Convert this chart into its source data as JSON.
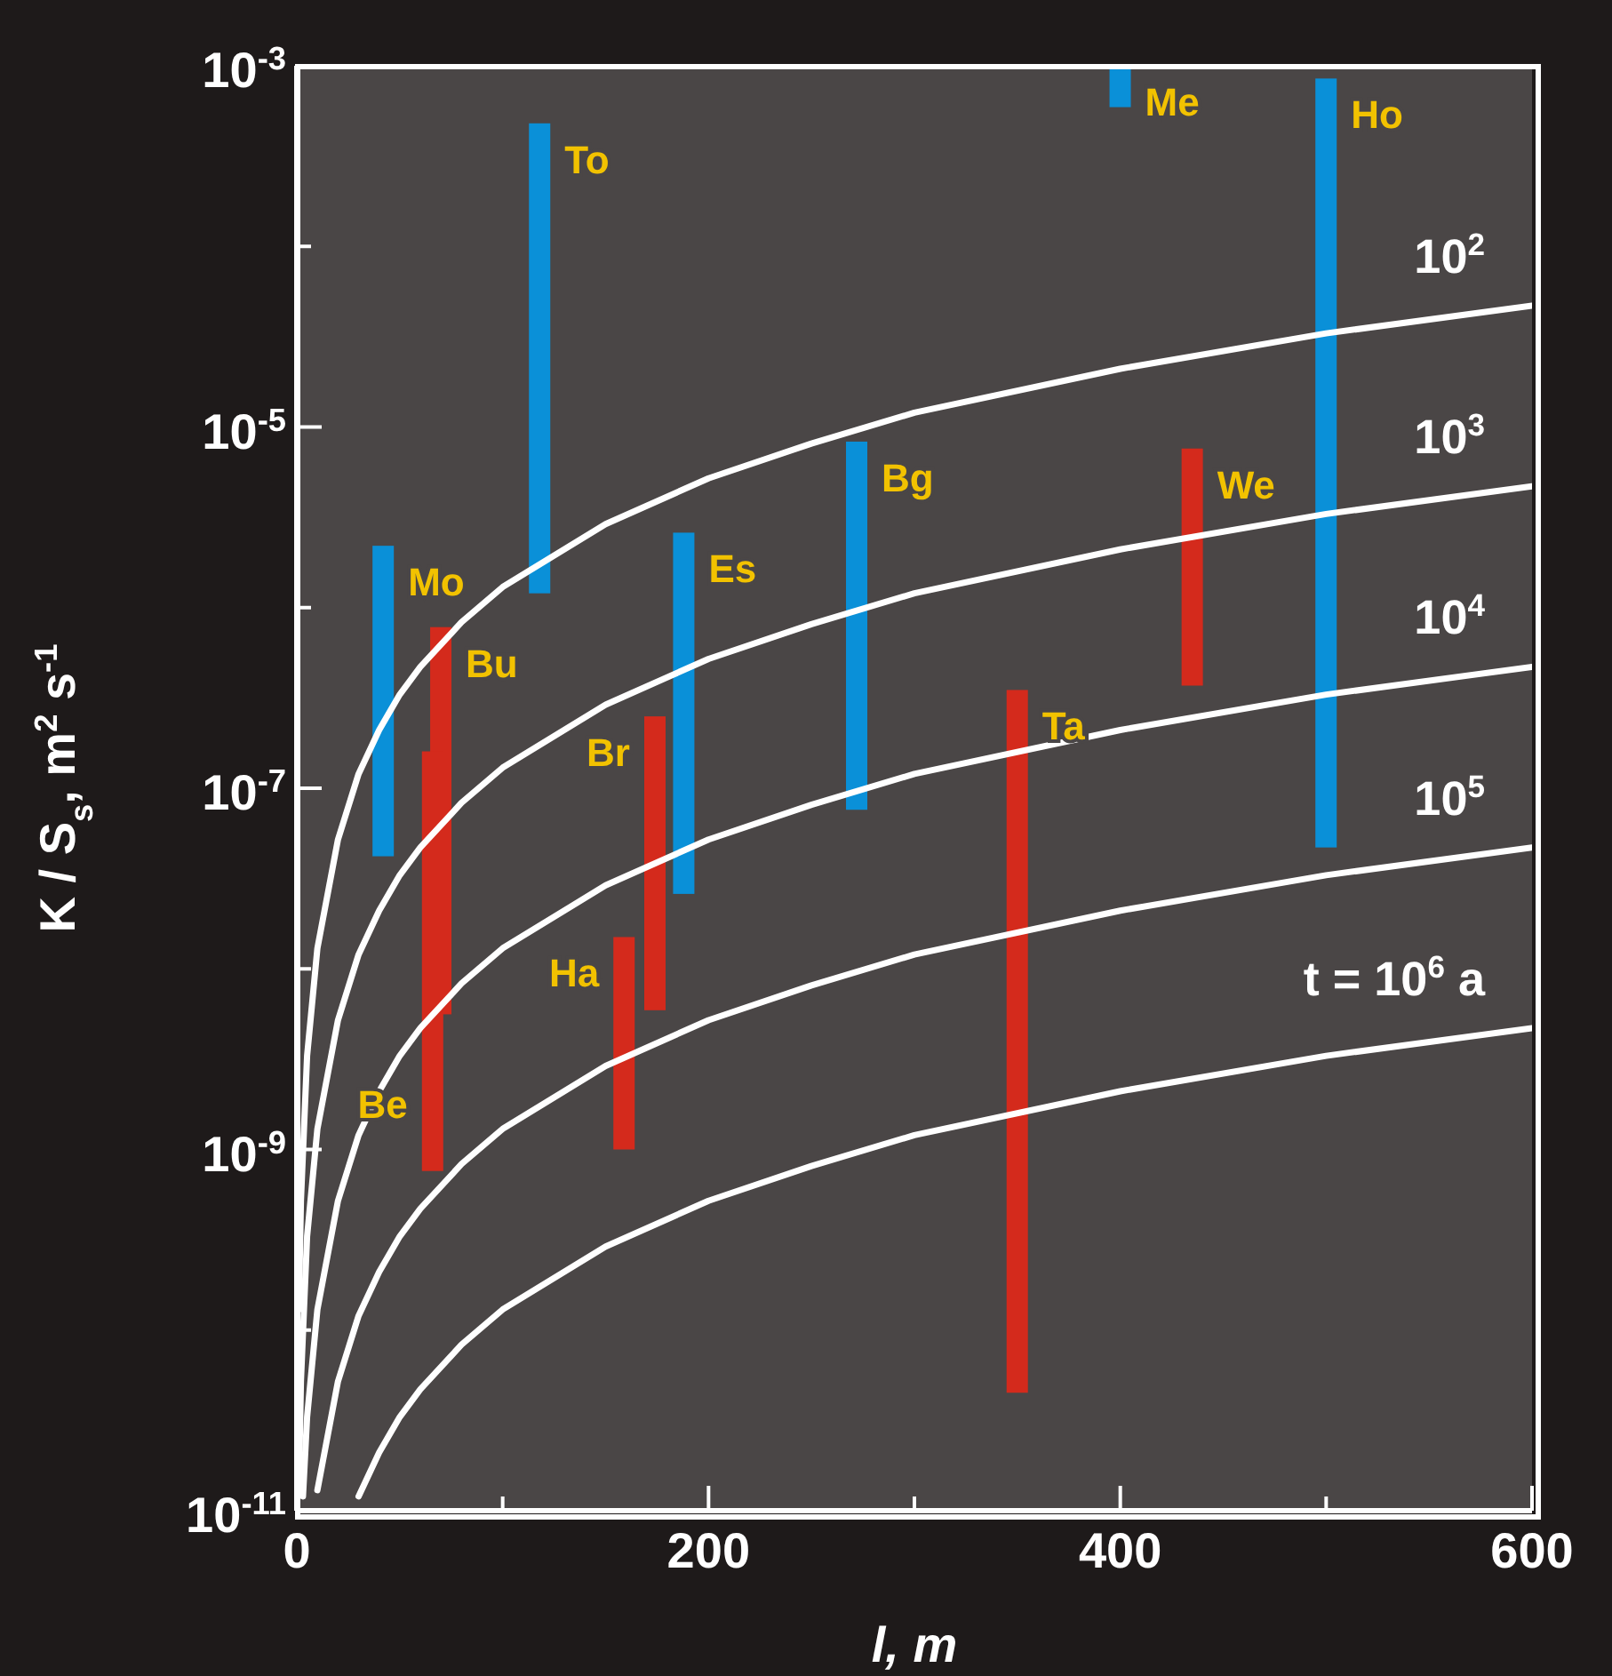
{
  "chart_data": {
    "type": "bar",
    "xlabel": "$^{}$l, m",
    "ylabel": "K / S$_{s}$, m$^{2}$ s$^{-1}$",
    "log": "y",
    "xlim": [
      0,
      600
    ],
    "xticks": [
      0,
      {
        "value": 100,
        "label": null
      },
      200,
      {
        "value": 300,
        "label": null
      },
      400,
      {
        "value": 500,
        "label": null
      },
      600
    ],
    "ylim": [
      1e-11,
      0.001
    ],
    "yticks": [
      {
        "value": 1e-11,
        "label": "10$^{-11}$"
      },
      {
        "value": 1e-10,
        "label": null
      },
      {
        "value": 1e-09,
        "label": "10$^{-9}$"
      },
      {
        "value": 1e-08,
        "label": null
      },
      {
        "value": 1e-07,
        "label": "10$^{-7}$"
      },
      {
        "value": 1e-06,
        "label": null
      },
      {
        "value": 1e-05,
        "label": "10$^{-5}$"
      },
      {
        "value": 0.0001,
        "label": null
      },
      {
        "value": 0.001,
        "label": "10$^{-3}$"
      }
    ],
    "series": [
      {
        "name": "Mo",
        "color": "#0a90d8",
        "x": [
          42
        ],
        "base": [
          4.2e-08
        ],
        "values": [
          2.158e-06
        ]
      },
      {
        "name": "Bu",
        "color": "#d42a1c",
        "x": [
          70
        ],
        "base": [
          5.6e-09
        ],
        "values": [
          7.744e-07
        ]
      },
      {
        "name": "Be",
        "color": "#d42a1c",
        "x": [
          66
        ],
        "base": [
          7.6e-10
        ],
        "values": [
          1.5924e-07
        ]
      },
      {
        "name": "To",
        "color": "#0a90d8",
        "x": [
          118
        ],
        "base": [
          1.2e-06
        ],
        "values": [
          0.0004788
        ]
      },
      {
        "name": "Ha",
        "color": "#d42a1c",
        "x": [
          159
        ],
        "base": [
          1e-09
        ],
        "values": [
          1.4e-08
        ]
      },
      {
        "name": "Br",
        "color": "#d42a1c",
        "x": [
          174
        ],
        "base": [
          5.9e-09
        ],
        "values": [
          2.441e-07
        ]
      },
      {
        "name": "Es",
        "color": "#0a90d8",
        "x": [
          188
        ],
        "base": [
          2.6e-08
        ],
        "values": [
          2.574e-06
        ]
      },
      {
        "name": "Bg",
        "color": "#0a90d8",
        "x": [
          272
        ],
        "base": [
          7.6e-08
        ],
        "values": [
          8.224e-06
        ]
      },
      {
        "name": "Ta",
        "color": "#d42a1c",
        "x": [
          350
        ],
        "base": [
          4.5e-11
        ],
        "values": [
          3.49955e-07
        ]
      },
      {
        "name": "Me",
        "color": "#0a90d8",
        "x": [
          400
        ],
        "base": [
          0.00059
        ],
        "values": [
          0.00041
        ]
      },
      {
        "name": "We",
        "color": "#d42a1c",
        "x": [
          435
        ],
        "base": [
          3.7e-07
        ],
        "values": [
          7.23e-06
        ]
      },
      {
        "name": "Ho",
        "color": "#0a90d8",
        "x": [
          500
        ],
        "base": [
          4.7e-08
        ],
        "values": [
          0.00084995
        ]
      },
      {
        "type": "line",
        "name": "10$^{2}$",
        "color": "#ffffff",
        "x": [
          1,
          2,
          5,
          10,
          20,
          30,
          40,
          50,
          60,
          80,
          100,
          150,
          200,
          250,
          300,
          400,
          500,
          600
        ],
        "values": [
          1.3e-10,
          5.2e-10,
          3.3e-09,
          1.3e-08,
          5.2e-08,
          1.2e-07,
          2.1e-07,
          3.3e-07,
          4.7e-07,
          8.3e-07,
          1.3e-06,
          2.9e-06,
          5.2e-06,
          8.1e-06,
          1.2e-05,
          2.1e-05,
          3.3e-05,
          4.7e-05
        ]
      },
      {
        "type": "line",
        "name": "10$^{3}$",
        "color": "#ffffff",
        "x": [
          1,
          2,
          5,
          10,
          20,
          30,
          40,
          50,
          60,
          80,
          100,
          150,
          200,
          250,
          300,
          400,
          500,
          600
        ],
        "values": [
          1.3e-11,
          5.2e-11,
          3.3e-10,
          1.3e-09,
          5.2e-09,
          1.2e-08,
          2.1e-08,
          3.3e-08,
          4.7e-08,
          8.3e-08,
          1.3e-07,
          2.9e-07,
          5.2e-07,
          8.1e-07,
          1.2e-06,
          2.1e-06,
          3.3e-06,
          4.7e-06
        ]
      },
      {
        "type": "line",
        "name": "10$^{4}$",
        "color": "#ffffff",
        "x": [
          3,
          5,
          10,
          20,
          30,
          40,
          50,
          60,
          80,
          100,
          150,
          200,
          250,
          300,
          400,
          500,
          600
        ],
        "values": [
          1.2e-11,
          3.3e-11,
          1.3e-10,
          5.2e-10,
          1.2e-09,
          2.1e-09,
          3.3e-09,
          4.7e-09,
          8.3e-09,
          1.3e-08,
          2.9e-08,
          5.2e-08,
          8.1e-08,
          1.2e-07,
          2.1e-07,
          3.3e-07,
          4.7e-07
        ]
      },
      {
        "type": "line",
        "name": "10$^{5}$",
        "color": "#ffffff",
        "x": [
          10,
          20,
          30,
          40,
          50,
          60,
          80,
          100,
          150,
          200,
          250,
          300,
          400,
          500,
          600
        ],
        "values": [
          1.3e-11,
          5.2e-11,
          1.2e-10,
          2.1e-10,
          3.3e-10,
          4.7e-10,
          8.3e-10,
          1.3e-09,
          2.9e-09,
          5.2e-09,
          8.1e-09,
          1.2e-08,
          2.1e-08,
          3.3e-08,
          4.7e-08
        ]
      },
      {
        "type": "line",
        "name": "t = 10$^{6}$ a",
        "color": "#ffffff",
        "x": [
          30,
          40,
          50,
          60,
          80,
          100,
          150,
          200,
          250,
          300,
          400,
          500,
          600
        ],
        "values": [
          1.2e-11,
          2.1e-11,
          3.3e-11,
          4.7e-11,
          8.3e-11,
          1.3e-10,
          2.9e-10,
          5.2e-10,
          8.1e-10,
          1.2e-09,
          2.1e-09,
          3.3e-09,
          4.7e-09
        ]
      }
    ]
  }
}
